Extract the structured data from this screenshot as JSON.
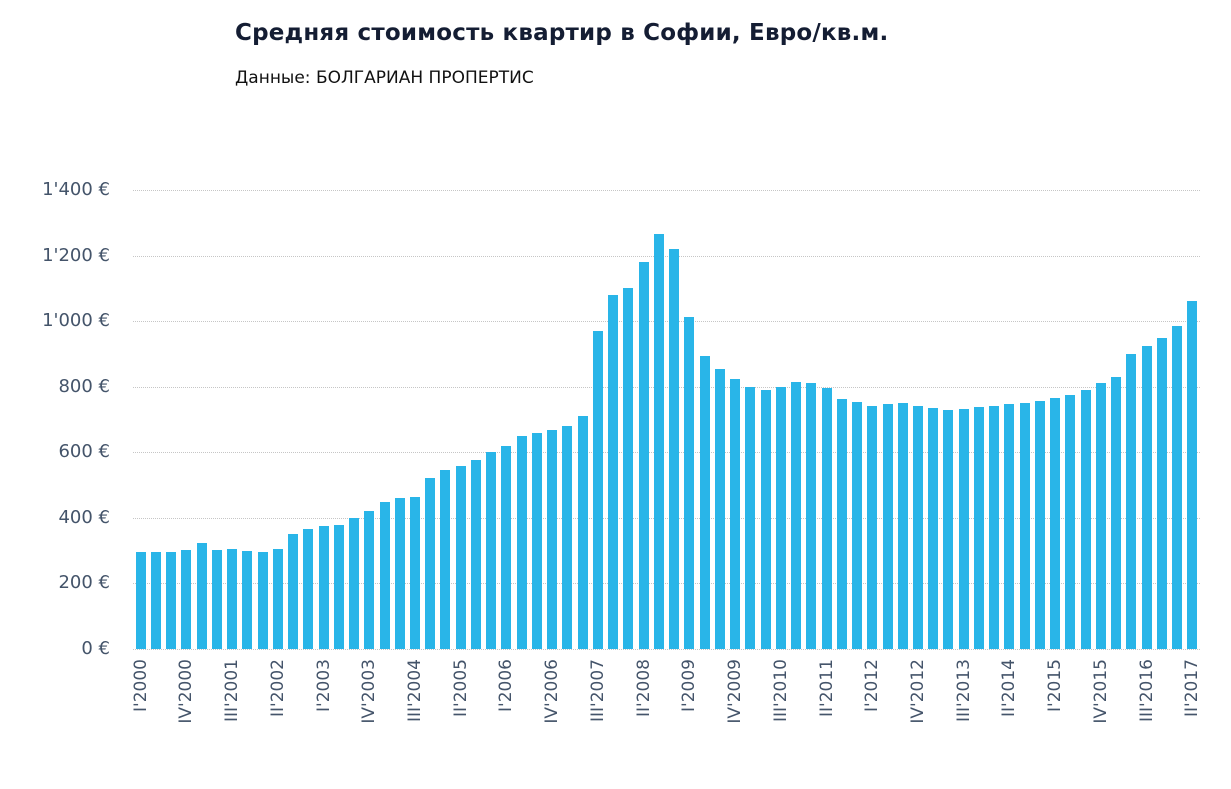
{
  "header": {
    "title": "Средняя стоимость квартир в Софии, Евро/кв.м.",
    "subtitle": "Данные: БОЛГАРИАН ПРОПЕРТИС"
  },
  "chart_data": {
    "type": "bar",
    "title": "Средняя стоимость квартир в Софии, Евро/кв.м.",
    "subtitle": "Данные: БОЛГАРИАН ПРОПЕРТИС",
    "xlabel": "",
    "ylabel": "",
    "ylim": [
      0,
      1400
    ],
    "yticks": [
      0,
      200,
      400,
      600,
      800,
      1000,
      1200,
      1400
    ],
    "ytick_labels": [
      "0 €",
      "200 €",
      "400 €",
      "600 €",
      "800 €",
      "1'000 €",
      "1'200 €",
      "1'400 €"
    ],
    "xtick_every": 3,
    "grid": true,
    "grid_style": "dotted",
    "legend": "none",
    "bar_color": "#29b5e8",
    "grid_color": "#c6c6c6",
    "axis_text_color": "#44546a",
    "title_color": "#141d33",
    "categories": [
      "I'2000",
      "II'2000",
      "III'2000",
      "IV'2000",
      "I'2001",
      "II'2001",
      "III'2001",
      "IV'2001",
      "I'2002",
      "II'2002",
      "III'2002",
      "IV'2002",
      "I'2003",
      "II'2003",
      "III'2003",
      "IV'2003",
      "I'2004",
      "II'2004",
      "III'2004",
      "IV'2004",
      "I'2005",
      "II'2005",
      "III'2005",
      "IV'2005",
      "I'2006",
      "II'2006",
      "III'2006",
      "IV'2006",
      "I'2007",
      "II'2007",
      "III'2007",
      "IV'2007",
      "I'2008",
      "II'2008",
      "III'2008",
      "IV'2008",
      "I'2009",
      "II'2009",
      "III'2009",
      "IV'2009",
      "I'2010",
      "II'2010",
      "III'2010",
      "IV'2010",
      "I'2011",
      "II'2011",
      "III'2011",
      "IV'2011",
      "I'2012",
      "II'2012",
      "III'2012",
      "IV'2012",
      "I'2013",
      "II'2013",
      "III'2013",
      "IV'2013",
      "I'2014",
      "II'2014",
      "III'2014",
      "IV'2014",
      "I'2015",
      "II'2015",
      "III'2015",
      "IV'2015",
      "I'2016",
      "II'2016",
      "III'2016",
      "IV'2016",
      "I'2017",
      "II'2017"
    ],
    "values": [
      296,
      296,
      296,
      301,
      322,
      301,
      306,
      299,
      296,
      306,
      350,
      365,
      376,
      378,
      400,
      421,
      447,
      460,
      463,
      521,
      545,
      557,
      577,
      600,
      620,
      650,
      660,
      668,
      680,
      710,
      970,
      1080,
      1100,
      1180,
      1266,
      1220,
      1012,
      893,
      855,
      825,
      798,
      790,
      800,
      815,
      810,
      795,
      762,
      752,
      742,
      746,
      749,
      742,
      736,
      730,
      732,
      738,
      742,
      746,
      750,
      757,
      765,
      775,
      790,
      810,
      830,
      900,
      925,
      950,
      985,
      1060
    ]
  }
}
